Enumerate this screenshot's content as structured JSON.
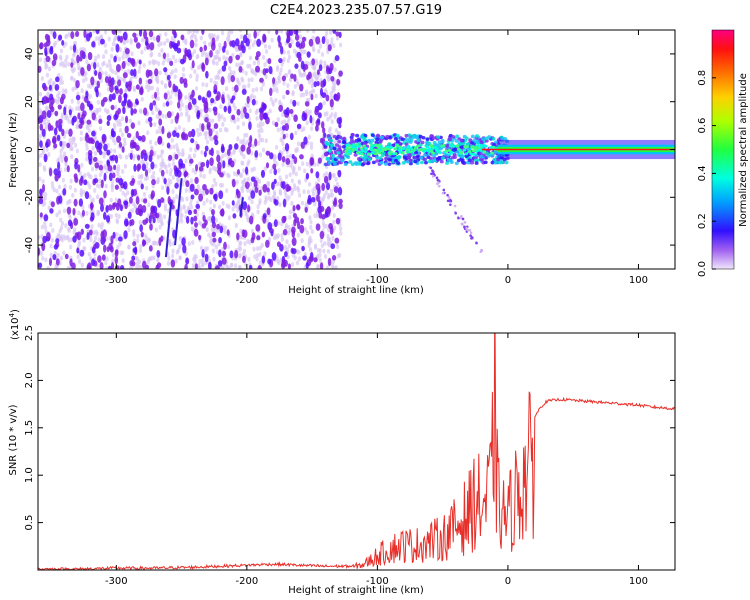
{
  "title": "C2E4.2023.235.07.57.G19",
  "colors": {
    "snr_line": "#e8302a",
    "scatter_low": "#d9c7f2",
    "scatter_mid": "#7f1fe0",
    "scatter_high": "#5a10ff"
  },
  "chart_data": [
    {
      "type": "heatmap",
      "xlabel": "Height of straight line (km)",
      "ylabel": "Frequency (Hz)",
      "xlim": [
        -360,
        128
      ],
      "ylim": [
        -50,
        50
      ],
      "x_ticks": [
        -300,
        -200,
        -100,
        0,
        100
      ],
      "x_tick_labels": [
        "-300",
        "-200",
        "-100",
        "0",
        "100"
      ],
      "y_ticks": [
        -40,
        -20,
        0,
        20,
        40
      ],
      "y_tick_labels": [
        "-40",
        "-20",
        "0",
        "20",
        "40"
      ],
      "colorbar": {
        "label": "Normalized spectral amplitude",
        "range": [
          0,
          1
        ],
        "ticks": [
          0.0,
          0.2,
          0.4,
          0.6,
          0.8
        ],
        "tick_labels": [
          "0.0",
          "0.2",
          "0.4",
          "0.6",
          "0.8"
        ]
      },
      "features": {
        "noise_region_x": [
          -360,
          -128
        ],
        "signal_center_hz": 0,
        "signal_band_x": [
          -140,
          128
        ]
      },
      "grid": false
    },
    {
      "type": "line",
      "xlabel": "Height of straight line (km)",
      "ylabel": "SNR (10 * v/v)",
      "y_scale_label": "(x10",
      "y_scale_exp": "4",
      "y_scale_close": ")",
      "xlim": [
        -360,
        128
      ],
      "ylim": [
        0,
        2.5
      ],
      "x_ticks": [
        -300,
        -200,
        -100,
        0,
        100
      ],
      "x_tick_labels": [
        "-300",
        "-200",
        "-100",
        "0",
        "100"
      ],
      "y_ticks": [
        0.5,
        1.0,
        1.5,
        2.0,
        2.5
      ],
      "y_tick_labels": [
        "0.5",
        "1.0",
        "1.5",
        "2.0",
        "2.5"
      ],
      "series": [
        {
          "x": [
            -360,
            -330,
            -300,
            -270,
            -240,
            -220,
            -200,
            -185,
            -175,
            -160,
            -140,
            -120,
            -110,
            -100,
            -90,
            -80,
            -70,
            -60,
            -50,
            -40,
            -30,
            -25,
            -20,
            -15,
            -12,
            -10,
            -8,
            -5,
            0,
            5,
            10,
            15,
            20,
            25,
            30,
            40,
            50,
            60,
            70,
            80,
            90,
            100,
            110,
            120,
            128
          ],
          "y": [
            0.01,
            0.01,
            0.02,
            0.02,
            0.03,
            0.04,
            0.05,
            0.06,
            0.06,
            0.05,
            0.04,
            0.04,
            0.08,
            0.2,
            0.3,
            0.35,
            0.35,
            0.4,
            0.45,
            0.6,
            0.8,
            1.0,
            0.9,
            1.0,
            1.4,
            2.5,
            1.0,
            0.8,
            0.75,
            1.0,
            1.2,
            1.4,
            1.6,
            1.72,
            1.78,
            1.8,
            1.79,
            1.78,
            1.77,
            1.76,
            1.75,
            1.74,
            1.72,
            1.71,
            1.7
          ]
        }
      ],
      "grid": false
    }
  ]
}
